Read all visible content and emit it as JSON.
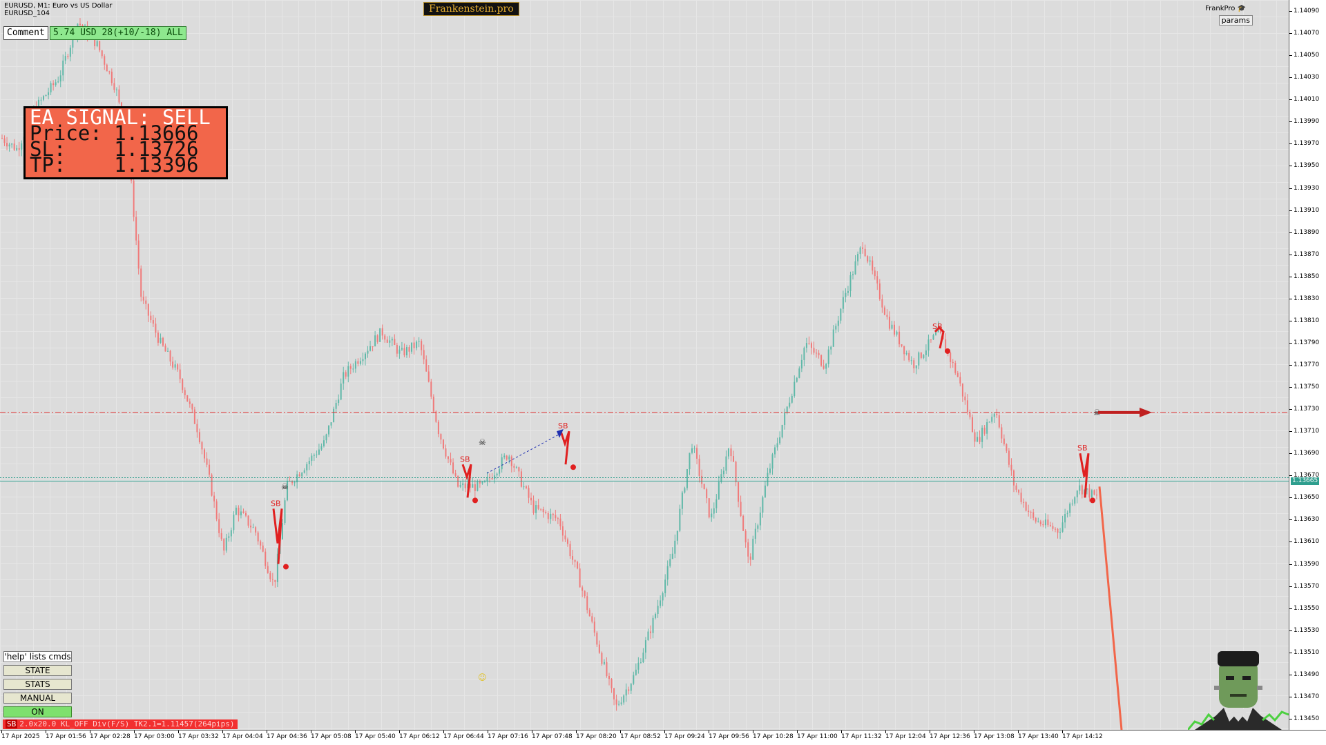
{
  "header": {
    "symbol_line1": "EURUSD, M1:  Euro vs US Dollar",
    "symbol_line2": "EURUSD_104",
    "brand": "Frankenstein.pro",
    "frankpro_label": "FrankPro",
    "params_button": "params"
  },
  "comment_box": {
    "label": "Comment",
    "pnl": "5.74 USD 28(+10/-18) ALL"
  },
  "signal_panel": {
    "title": "EA SIGNAL: SELL",
    "price": "Price: 1.13666",
    "sl": "SL:    1.13726",
    "tp": "TP:    1.13396"
  },
  "buttons": {
    "help": "'help' lists cmds",
    "state": "STATE",
    "stats": "STATS",
    "manual": "MANUAL",
    "on": "ON"
  },
  "status_bar": {
    "tag": "SB",
    "text": "2.0x20.0 KL_OFF Div(F/S) TK2.1=1.11457(264pips)"
  },
  "y_axis": {
    "ticks": [
      "1.14090",
      "1.14070",
      "1.14050",
      "1.14030",
      "1.14010",
      "1.13990",
      "1.13970",
      "1.13950",
      "1.13930",
      "1.13910",
      "1.13890",
      "1.13870",
      "1.13850",
      "1.13830",
      "1.13810",
      "1.13790",
      "1.13770",
      "1.13750",
      "1.13730",
      "1.13710",
      "1.13690",
      "1.13670",
      "1.13650",
      "1.13630",
      "1.13610",
      "1.13590",
      "1.13570",
      "1.13550",
      "1.13530",
      "1.13510",
      "1.13490",
      "1.13470",
      "1.13450"
    ],
    "current_price": "1.13665"
  },
  "x_axis": {
    "ticks": [
      "17 Apr 2025",
      "17 Apr 01:56",
      "17 Apr 02:28",
      "17 Apr 03:00",
      "17 Apr 03:32",
      "17 Apr 04:04",
      "17 Apr 04:36",
      "17 Apr 05:08",
      "17 Apr 05:40",
      "17 Apr 06:12",
      "17 Apr 06:44",
      "17 Apr 07:16",
      "17 Apr 07:48",
      "17 Apr 08:20",
      "17 Apr 08:52",
      "17 Apr 09:24",
      "17 Apr 09:56",
      "17 Apr 10:28",
      "17 Apr 11:00",
      "17 Apr 11:32",
      "17 Apr 12:04",
      "17 Apr 12:36",
      "17 Apr 13:08",
      "17 Apr 13:40",
      "17 Apr 14:12"
    ]
  },
  "markers": {
    "sb_label": "SB"
  },
  "colors": {
    "bull": "#5fb8a8",
    "bear": "#f07a7a",
    "signal": "#f2664a",
    "sl_line": "#e03030",
    "price_line": "#2e9e8e"
  },
  "price_path": [
    [
      0,
      1.13975
    ],
    [
      0.012,
      1.13965
    ],
    [
      0.025,
      1.14
    ],
    [
      0.045,
      1.1403
    ],
    [
      0.06,
      1.1408
    ],
    [
      0.075,
      1.1406
    ],
    [
      0.09,
      1.1402
    ],
    [
      0.1,
      1.1396
    ],
    [
      0.11,
      1.1383
    ],
    [
      0.125,
      1.1379
    ],
    [
      0.14,
      1.1376
    ],
    [
      0.155,
      1.1371
    ],
    [
      0.165,
      1.1366
    ],
    [
      0.175,
      1.136
    ],
    [
      0.185,
      1.1364
    ],
    [
      0.2,
      1.1362
    ],
    [
      0.215,
      1.1357
    ],
    [
      0.225,
      1.1366
    ],
    [
      0.24,
      1.1368
    ],
    [
      0.255,
      1.137
    ],
    [
      0.27,
      1.1376
    ],
    [
      0.285,
      1.1378
    ],
    [
      0.3,
      1.138
    ],
    [
      0.315,
      1.1378
    ],
    [
      0.33,
      1.1379
    ],
    [
      0.345,
      1.1371
    ],
    [
      0.36,
      1.1366
    ],
    [
      0.38,
      1.1366
    ],
    [
      0.4,
      1.1369
    ],
    [
      0.42,
      1.1364
    ],
    [
      0.44,
      1.1363
    ],
    [
      0.455,
      1.1358
    ],
    [
      0.47,
      1.1352
    ],
    [
      0.485,
      1.1346
    ],
    [
      0.5,
      1.1349
    ],
    [
      0.515,
      1.1354
    ],
    [
      0.53,
      1.136
    ],
    [
      0.545,
      1.137
    ],
    [
      0.56,
      1.1363
    ],
    [
      0.575,
      1.137
    ],
    [
      0.59,
      1.1359
    ],
    [
      0.605,
      1.1367
    ],
    [
      0.62,
      1.1373
    ],
    [
      0.635,
      1.1379
    ],
    [
      0.65,
      1.1377
    ],
    [
      0.665,
      1.1383
    ],
    [
      0.68,
      1.1388
    ],
    [
      0.7,
      1.1381
    ],
    [
      0.72,
      1.1377
    ],
    [
      0.74,
      1.138
    ],
    [
      0.755,
      1.1376
    ],
    [
      0.77,
      1.137
    ],
    [
      0.785,
      1.1373
    ],
    [
      0.8,
      1.1366
    ],
    [
      0.815,
      1.1363
    ],
    [
      0.835,
      1.1362
    ],
    [
      0.85,
      1.1366
    ],
    [
      0.865,
      1.1365
    ]
  ]
}
